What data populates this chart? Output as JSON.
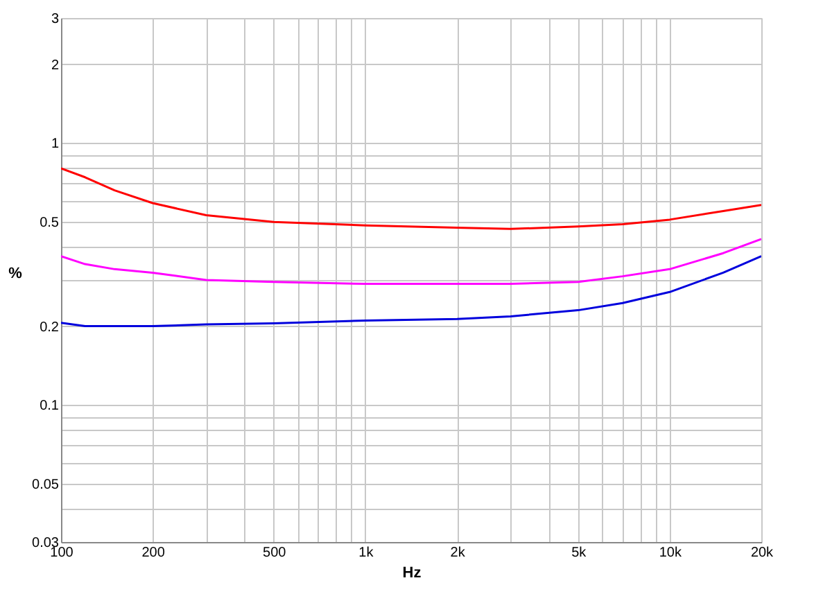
{
  "chart_data": {
    "type": "line",
    "xlabel": "Hz",
    "ylabel": "%",
    "log": "xy",
    "grid": true,
    "legend": false,
    "marker": "none",
    "line_style": "solid",
    "xlim": [
      100,
      20000
    ],
    "ylim": [
      0.03,
      3
    ],
    "xticks": [
      100,
      200,
      {
        "value": 300,
        "label": null
      },
      {
        "value": 400,
        "label": null
      },
      500,
      {
        "value": 600,
        "label": null
      },
      {
        "value": 700,
        "label": null
      },
      {
        "value": 800,
        "label": null
      },
      {
        "value": 900,
        "label": null
      },
      {
        "value": 1000,
        "label": "1k"
      },
      {
        "value": 2000,
        "label": "2k"
      },
      {
        "value": 3000,
        "label": null
      },
      {
        "value": 4000,
        "label": null
      },
      {
        "value": 5000,
        "label": "5k"
      },
      {
        "value": 6000,
        "label": null
      },
      {
        "value": 7000,
        "label": null
      },
      {
        "value": 8000,
        "label": null
      },
      {
        "value": 9000,
        "label": null
      },
      {
        "value": 10000,
        "label": "10k"
      },
      {
        "value": 20000,
        "label": "20k"
      }
    ],
    "yticks": [
      0.03,
      {
        "value": 0.04,
        "label": null
      },
      0.05,
      {
        "value": 0.06,
        "label": null
      },
      {
        "value": 0.07,
        "label": null
      },
      {
        "value": 0.08,
        "label": null
      },
      {
        "value": 0.09,
        "label": null
      },
      0.1,
      0.2,
      {
        "value": 0.3,
        "label": null
      },
      {
        "value": 0.4,
        "label": null
      },
      0.5,
      {
        "value": 0.6,
        "label": null
      },
      {
        "value": 0.7,
        "label": null
      },
      {
        "value": 0.8,
        "label": null
      },
      {
        "value": 0.9,
        "label": null
      },
      1,
      2,
      3
    ],
    "x": [
      100,
      120,
      150,
      200,
      300,
      500,
      1000,
      2000,
      3000,
      5000,
      7000,
      10000,
      15000,
      20000
    ],
    "series": [
      {
        "color": "#ff0000",
        "values": [
          0.8,
          0.74,
          0.66,
          0.59,
          0.53,
          0.5,
          0.485,
          0.475,
          0.47,
          0.48,
          0.49,
          0.51,
          0.55,
          0.58
        ]
      },
      {
        "color": "#ff00ff",
        "values": [
          0.37,
          0.345,
          0.33,
          0.32,
          0.3,
          0.295,
          0.29,
          0.29,
          0.29,
          0.295,
          0.31,
          0.33,
          0.38,
          0.43
        ]
      },
      {
        "color": "#0000dd",
        "values": [
          0.206,
          0.2,
          0.2,
          0.2,
          0.203,
          0.205,
          0.21,
          0.213,
          0.218,
          0.23,
          0.245,
          0.27,
          0.32,
          0.37
        ]
      }
    ]
  }
}
